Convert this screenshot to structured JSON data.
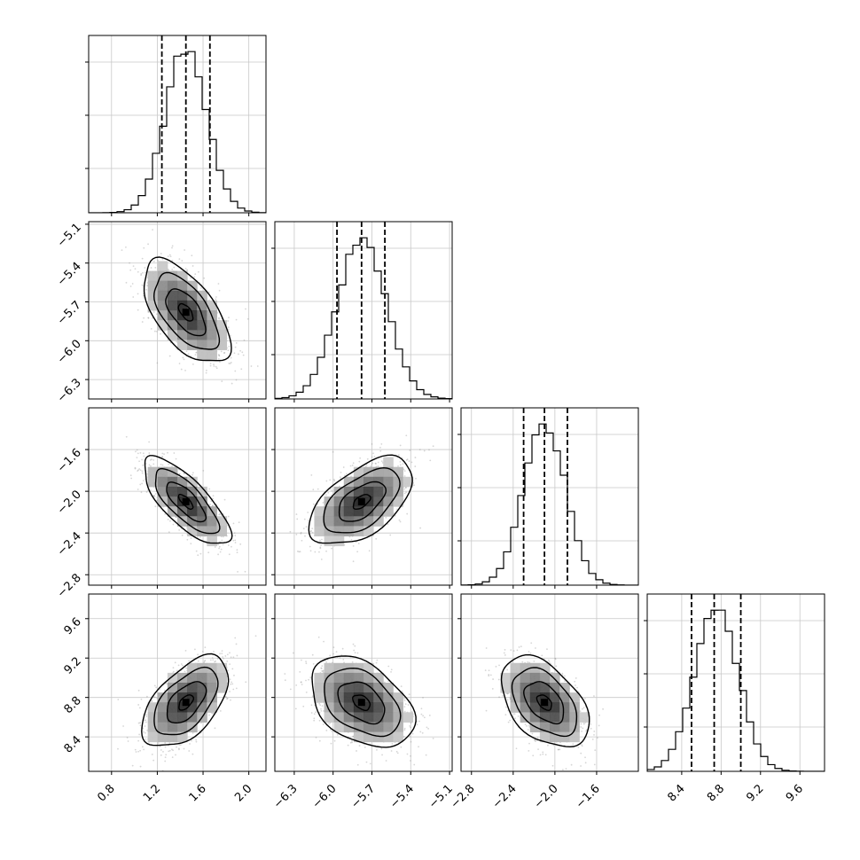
{
  "params": [
    {
      "ticks": [
        0.8,
        1.2,
        1.6,
        2.0
      ],
      "labels": [
        "0.8",
        "1.2",
        "1.6",
        "2.0"
      ],
      "lim": [
        0.6,
        2.15
      ],
      "mean": 1.45,
      "sd": 0.18,
      "q": [
        1.24,
        1.45,
        1.66
      ]
    },
    {
      "ticks": [
        -6.3,
        -6.0,
        -5.7,
        -5.4,
        -5.1
      ],
      "labels": [
        "−6.3",
        "−6.0",
        "−5.7",
        "−5.4",
        "−5.1"
      ],
      "lim": [
        -6.45,
        -5.08
      ],
      "mean": -5.78,
      "sd": 0.19,
      "q": [
        -5.97,
        -5.78,
        -5.6
      ]
    },
    {
      "ticks": [
        -2.8,
        -2.4,
        -2.0,
        -1.6
      ],
      "labels": [
        "−2.8",
        "−2.4",
        "−2.0",
        "−1.6"
      ],
      "lim": [
        -2.9,
        -1.2
      ],
      "mean": -2.1,
      "sd": 0.2,
      "q": [
        -2.3,
        -2.1,
        -1.88
      ]
    },
    {
      "ticks": [
        8.4,
        8.8,
        9.2,
        9.6
      ],
      "labels": [
        "8.4",
        "8.8",
        "9.2",
        "9.6"
      ],
      "lim": [
        8.05,
        9.85
      ],
      "mean": 8.75,
      "sd": 0.22,
      "q": [
        8.5,
        8.73,
        9.0
      ]
    }
  ],
  "chart_data": {
    "type": "scatter",
    "parameters": 4,
    "correlations": [
      {
        "row": 1,
        "col": 0,
        "rho": -0.6
      },
      {
        "row": 2,
        "col": 0,
        "rho": -0.75
      },
      {
        "row": 2,
        "col": 1,
        "rho": 0.55
      },
      {
        "row": 3,
        "col": 0,
        "rho": 0.55
      },
      {
        "row": 3,
        "col": 1,
        "rho": -0.4
      },
      {
        "row": 3,
        "col": 2,
        "rho": -0.45
      }
    ],
    "histogram_quantiles": [
      [
        1.24,
        1.45,
        1.66
      ],
      [
        -5.97,
        -5.78,
        -5.6
      ],
      [
        -2.3,
        -2.1,
        -1.88
      ],
      [
        8.5,
        8.73,
        9.0
      ]
    ],
    "grid": true
  }
}
